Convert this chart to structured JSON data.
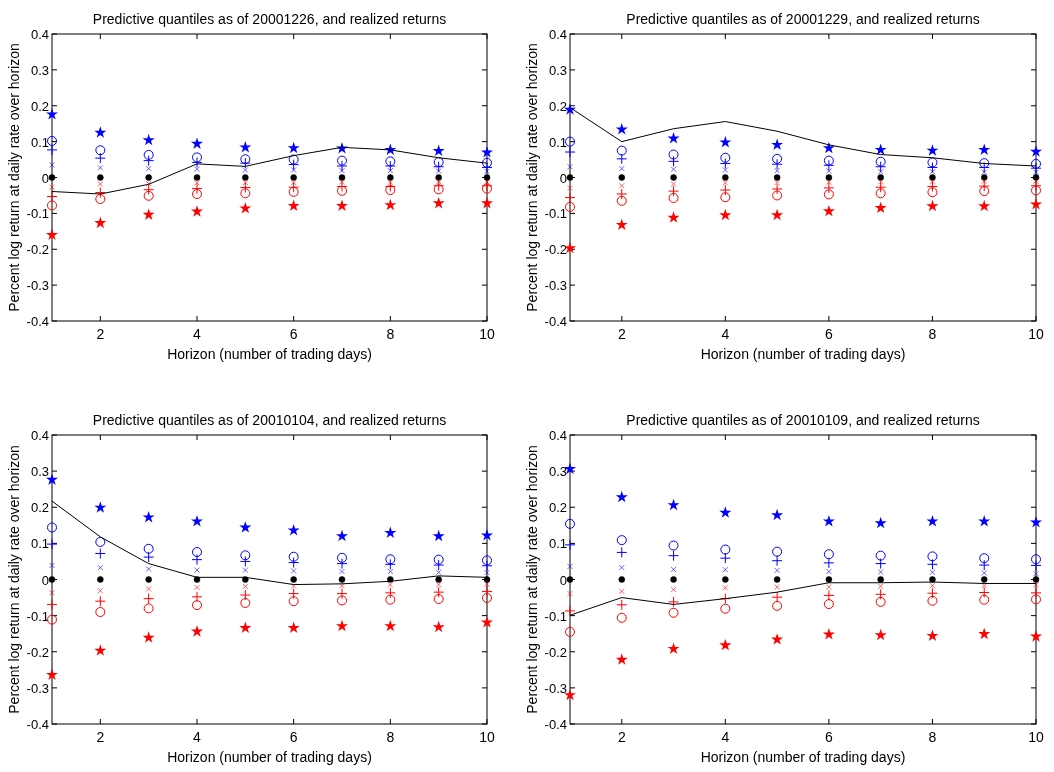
{
  "chart_data": [
    {
      "type": "scatter",
      "title": "Predictive quantiles as of 20001226, and realized returns",
      "xlabel": "Horizon (number of trading days)",
      "ylabel": "Percent log return at daily rate over horizon",
      "xlim": [
        1,
        10
      ],
      "ylim": [
        -0.4,
        0.4
      ],
      "xticks": [
        2,
        4,
        6,
        8,
        10
      ],
      "yticks": [
        -0.4,
        -0.3,
        -0.2,
        -0.1,
        0,
        0.1,
        0.2,
        0.3,
        0.4
      ],
      "x": [
        1,
        2,
        3,
        4,
        5,
        6,
        7,
        8,
        9,
        10
      ],
      "series": [
        {
          "marker": "star",
          "color": "#0000ff",
          "values": [
            0.176,
            0.125,
            0.104,
            0.094,
            0.084,
            0.082,
            0.081,
            0.077,
            0.074,
            0.07
          ]
        },
        {
          "marker": "circle",
          "color": "#0000ff",
          "values": [
            0.102,
            0.076,
            0.063,
            0.056,
            0.051,
            0.05,
            0.047,
            0.045,
            0.043,
            0.041
          ]
        },
        {
          "marker": "plus",
          "color": "#0000ff",
          "values": [
            0.077,
            0.054,
            0.047,
            0.042,
            0.04,
            0.036,
            0.032,
            0.032,
            0.03,
            0.028
          ]
        },
        {
          "marker": "cross",
          "color": "#0000ff",
          "values": [
            0.035,
            0.027,
            0.025,
            0.023,
            0.021,
            0.021,
            0.019,
            0.019,
            0.018,
            0.017
          ]
        },
        {
          "marker": "circle",
          "color": "#000000",
          "values": [
            0,
            0,
            0,
            0,
            0,
            0,
            0,
            0,
            0,
            0
          ]
        },
        {
          "marker": "cross",
          "color": "#ff0000",
          "values": [
            -0.027,
            -0.018,
            -0.017,
            -0.015,
            -0.014,
            -0.014,
            -0.013,
            -0.013,
            -0.012,
            -0.012
          ]
        },
        {
          "marker": "plus",
          "color": "#ff0000",
          "values": [
            -0.053,
            -0.042,
            -0.034,
            -0.031,
            -0.028,
            -0.027,
            -0.025,
            -0.025,
            -0.023,
            -0.023
          ]
        },
        {
          "marker": "circle",
          "color": "#ff0000",
          "values": [
            -0.078,
            -0.06,
            -0.051,
            -0.046,
            -0.044,
            -0.04,
            -0.037,
            -0.035,
            -0.033,
            -0.031
          ]
        },
        {
          "marker": "star",
          "color": "#ff0000",
          "values": [
            -0.16,
            -0.127,
            -0.104,
            -0.095,
            -0.086,
            -0.079,
            -0.079,
            -0.077,
            -0.072,
            -0.072
          ]
        },
        {
          "type": "line",
          "marker": "none",
          "color": "#000000",
          "values": [
            -0.039,
            -0.046,
            -0.019,
            0.038,
            0.031,
            0.061,
            0.084,
            0.077,
            0.055,
            0.04
          ]
        }
      ]
    },
    {
      "type": "scatter",
      "title": "Predictive quantiles as of 20001229, and realized returns",
      "xlabel": "Horizon (number of trading days)",
      "ylabel": "Percent log return at daily rate over horizon",
      "xlim": [
        1,
        10
      ],
      "ylim": [
        -0.4,
        0.4
      ],
      "xticks": [
        2,
        4,
        6,
        8,
        10
      ],
      "yticks": [
        -0.4,
        -0.3,
        -0.2,
        -0.1,
        0,
        0.1,
        0.2,
        0.3,
        0.4
      ],
      "x": [
        1,
        2,
        3,
        4,
        5,
        6,
        7,
        8,
        9,
        10
      ],
      "series": [
        {
          "marker": "star",
          "color": "#0000ff",
          "values": [
            0.189,
            0.134,
            0.109,
            0.098,
            0.091,
            0.082,
            0.077,
            0.075,
            0.077,
            0.072
          ]
        },
        {
          "marker": "circle",
          "color": "#0000ff",
          "values": [
            0.1,
            0.075,
            0.064,
            0.055,
            0.052,
            0.047,
            0.044,
            0.042,
            0.04,
            0.038
          ]
        },
        {
          "marker": "plus",
          "color": "#0000ff",
          "values": [
            0.071,
            0.052,
            0.045,
            0.039,
            0.037,
            0.034,
            0.03,
            0.028,
            0.028,
            0.026
          ]
        },
        {
          "marker": "cross",
          "color": "#0000ff",
          "values": [
            0.03,
            0.025,
            0.023,
            0.021,
            0.019,
            0.018,
            0.016,
            0.016,
            0.015,
            0.014
          ]
        },
        {
          "marker": "circle",
          "color": "#000000",
          "values": [
            0,
            0,
            0,
            0,
            0,
            0,
            0,
            0,
            0,
            0
          ]
        },
        {
          "marker": "cross",
          "color": "#ff0000",
          "values": [
            -0.03,
            -0.023,
            -0.018,
            -0.015,
            -0.014,
            -0.013,
            -0.012,
            -0.012,
            -0.01,
            -0.01
          ]
        },
        {
          "marker": "plus",
          "color": "#ff0000",
          "values": [
            -0.056,
            -0.046,
            -0.038,
            -0.035,
            -0.032,
            -0.029,
            -0.027,
            -0.025,
            -0.024,
            -0.023
          ]
        },
        {
          "marker": "circle",
          "color": "#ff0000",
          "values": [
            -0.082,
            -0.065,
            -0.057,
            -0.055,
            -0.05,
            -0.047,
            -0.044,
            -0.041,
            -0.038,
            -0.036
          ]
        },
        {
          "marker": "star",
          "color": "#ff0000",
          "values": [
            -0.197,
            -0.132,
            -0.112,
            -0.105,
            -0.105,
            -0.094,
            -0.085,
            -0.08,
            -0.08,
            -0.075
          ]
        },
        {
          "type": "line",
          "marker": "none",
          "color": "#000000",
          "values": [
            0.195,
            0.1,
            0.136,
            0.156,
            0.129,
            0.091,
            0.064,
            0.055,
            0.039,
            0.032
          ]
        }
      ]
    },
    {
      "type": "scatter",
      "title": "Predictive quantiles as of 20010104, and realized returns",
      "xlabel": "Horizon (number of trading days)",
      "ylabel": "Percent log return at daily rate over horizon",
      "xlim": [
        1,
        10
      ],
      "ylim": [
        -0.4,
        0.4
      ],
      "xticks": [
        2,
        4,
        6,
        8,
        10
      ],
      "yticks": [
        -0.4,
        -0.3,
        -0.2,
        -0.1,
        0,
        0.1,
        0.2,
        0.3,
        0.4
      ],
      "x": [
        1,
        2,
        3,
        4,
        5,
        6,
        7,
        8,
        9,
        10
      ],
      "series": [
        {
          "marker": "star",
          "color": "#0000ff",
          "values": [
            0.276,
            0.199,
            0.172,
            0.161,
            0.144,
            0.136,
            0.12,
            0.129,
            0.12,
            0.122
          ]
        },
        {
          "marker": "circle",
          "color": "#0000ff",
          "values": [
            0.144,
            0.104,
            0.085,
            0.076,
            0.067,
            0.063,
            0.06,
            0.056,
            0.055,
            0.053
          ]
        },
        {
          "marker": "plus",
          "color": "#0000ff",
          "values": [
            0.098,
            0.072,
            0.062,
            0.055,
            0.05,
            0.047,
            0.044,
            0.042,
            0.04,
            0.038
          ]
        },
        {
          "marker": "cross",
          "color": "#0000ff",
          "values": [
            0.039,
            0.033,
            0.029,
            0.026,
            0.026,
            0.024,
            0.022,
            0.022,
            0.02,
            0.019
          ]
        },
        {
          "marker": "circle",
          "color": "#000000",
          "values": [
            0,
            0,
            0,
            0,
            0,
            0,
            0,
            0,
            0,
            0
          ]
        },
        {
          "marker": "cross",
          "color": "#ff0000",
          "values": [
            -0.037,
            -0.031,
            -0.026,
            -0.022,
            -0.019,
            -0.018,
            -0.017,
            -0.015,
            -0.014,
            -0.013
          ]
        },
        {
          "marker": "plus",
          "color": "#ff0000",
          "values": [
            -0.069,
            -0.06,
            -0.053,
            -0.048,
            -0.043,
            -0.039,
            -0.039,
            -0.037,
            -0.035,
            -0.033
          ]
        },
        {
          "marker": "circle",
          "color": "#ff0000",
          "values": [
            -0.111,
            -0.09,
            -0.08,
            -0.071,
            -0.065,
            -0.06,
            -0.058,
            -0.056,
            -0.054,
            -0.051
          ]
        },
        {
          "marker": "star",
          "color": "#ff0000",
          "values": [
            -0.264,
            -0.197,
            -0.161,
            -0.144,
            -0.134,
            -0.134,
            -0.129,
            -0.129,
            -0.132,
            -0.119
          ]
        },
        {
          "type": "line",
          "marker": "none",
          "color": "#000000",
          "values": [
            0.217,
            0.118,
            0.044,
            0.006,
            0.006,
            -0.014,
            -0.012,
            -0.005,
            0.01,
            0.006
          ]
        }
      ]
    },
    {
      "type": "scatter",
      "title": "Predictive quantiles as of 20010109, and realized returns",
      "xlabel": "Horizon (number of trading days)",
      "ylabel": "Percent log return at daily rate over horizon",
      "xlim": [
        1,
        10
      ],
      "ylim": [
        -0.4,
        0.4
      ],
      "xticks": [
        2,
        4,
        6,
        8,
        10
      ],
      "yticks": [
        -0.4,
        -0.3,
        -0.2,
        -0.1,
        0,
        0.1,
        0.2,
        0.3,
        0.4
      ],
      "x": [
        1,
        2,
        3,
        4,
        5,
        6,
        7,
        8,
        9,
        10
      ],
      "series": [
        {
          "marker": "star",
          "color": "#0000ff",
          "values": [
            0.306,
            0.228,
            0.206,
            0.185,
            0.178,
            0.161,
            0.156,
            0.161,
            0.161,
            0.158
          ]
        },
        {
          "marker": "circle",
          "color": "#0000ff",
          "values": [
            0.154,
            0.109,
            0.094,
            0.083,
            0.077,
            0.07,
            0.066,
            0.064,
            0.059,
            0.056
          ]
        },
        {
          "marker": "plus",
          "color": "#0000ff",
          "values": [
            0.096,
            0.075,
            0.066,
            0.059,
            0.052,
            0.046,
            0.044,
            0.042,
            0.04,
            0.039
          ]
        },
        {
          "marker": "cross",
          "color": "#0000ff",
          "values": [
            0.036,
            0.033,
            0.028,
            0.027,
            0.025,
            0.022,
            0.021,
            0.02,
            0.018,
            0.016
          ]
        },
        {
          "marker": "circle",
          "color": "#000000",
          "values": [
            0,
            0,
            0,
            0,
            0,
            0,
            0,
            0,
            0,
            0
          ]
        },
        {
          "marker": "cross",
          "color": "#ff0000",
          "values": [
            -0.039,
            -0.033,
            -0.028,
            -0.023,
            -0.021,
            -0.021,
            -0.019,
            -0.017,
            -0.017,
            -0.015
          ]
        },
        {
          "marker": "plus",
          "color": "#ff0000",
          "values": [
            -0.087,
            -0.07,
            -0.062,
            -0.053,
            -0.049,
            -0.044,
            -0.041,
            -0.038,
            -0.036,
            -0.037
          ]
        },
        {
          "marker": "circle",
          "color": "#ff0000",
          "values": [
            -0.145,
            -0.106,
            -0.092,
            -0.081,
            -0.073,
            -0.068,
            -0.062,
            -0.059,
            -0.056,
            -0.055
          ]
        },
        {
          "marker": "star",
          "color": "#ff0000",
          "values": [
            -0.32,
            -0.222,
            -0.192,
            -0.182,
            -0.166,
            -0.152,
            -0.154,
            -0.156,
            -0.151,
            -0.158
          ]
        },
        {
          "type": "line",
          "marker": "none",
          "color": "#000000",
          "values": [
            -0.099,
            -0.05,
            -0.069,
            -0.053,
            -0.035,
            -0.009,
            -0.009,
            -0.007,
            -0.011,
            -0.011
          ]
        }
      ]
    }
  ]
}
